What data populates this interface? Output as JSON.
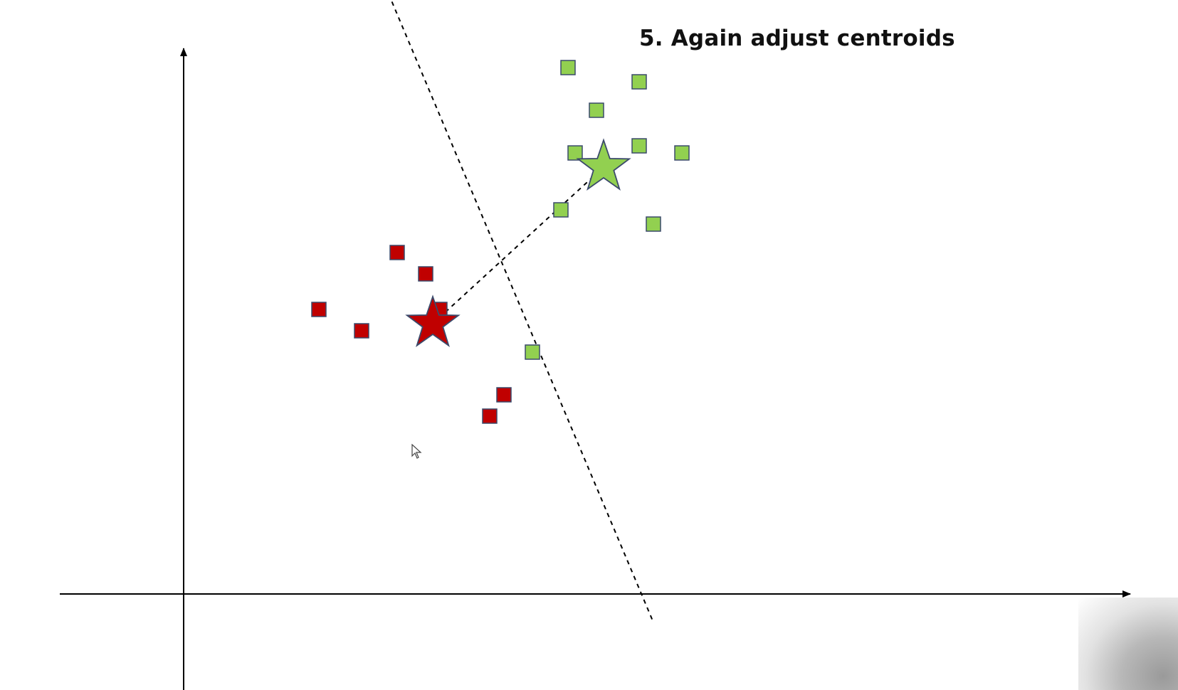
{
  "slide": {
    "title": "5. Again adjust centroids"
  },
  "colors": {
    "red_cluster": "#c00000",
    "green_cluster": "#92d050",
    "marker_outline": "#3b4a6b",
    "axis": "#000000"
  },
  "clusters": {
    "red": {
      "points": [
        {
          "x": 1.9,
          "y": 4.0
        },
        {
          "x": 2.5,
          "y": 3.7
        },
        {
          "x": 3.0,
          "y": 4.8
        },
        {
          "x": 3.4,
          "y": 4.5
        },
        {
          "x": 3.6,
          "y": 4.0
        },
        {
          "x": 4.3,
          "y": 2.5
        },
        {
          "x": 4.5,
          "y": 2.8
        }
      ],
      "centroid": {
        "x": 3.5,
        "y": 3.8
      }
    },
    "green": {
      "points": [
        {
          "x": 4.9,
          "y": 3.4
        },
        {
          "x": 5.3,
          "y": 5.4
        },
        {
          "x": 5.4,
          "y": 7.4
        },
        {
          "x": 5.5,
          "y": 6.2
        },
        {
          "x": 5.8,
          "y": 6.8
        },
        {
          "x": 6.4,
          "y": 7.2
        },
        {
          "x": 6.4,
          "y": 6.3
        },
        {
          "x": 6.6,
          "y": 5.2
        },
        {
          "x": 7.0,
          "y": 6.2
        }
      ],
      "centroid": {
        "x": 5.9,
        "y": 6.0
      }
    }
  },
  "boundary": {
    "x1": 2.6,
    "y1": 9.1,
    "x2": 6.6,
    "y2": -0.4
  }
}
